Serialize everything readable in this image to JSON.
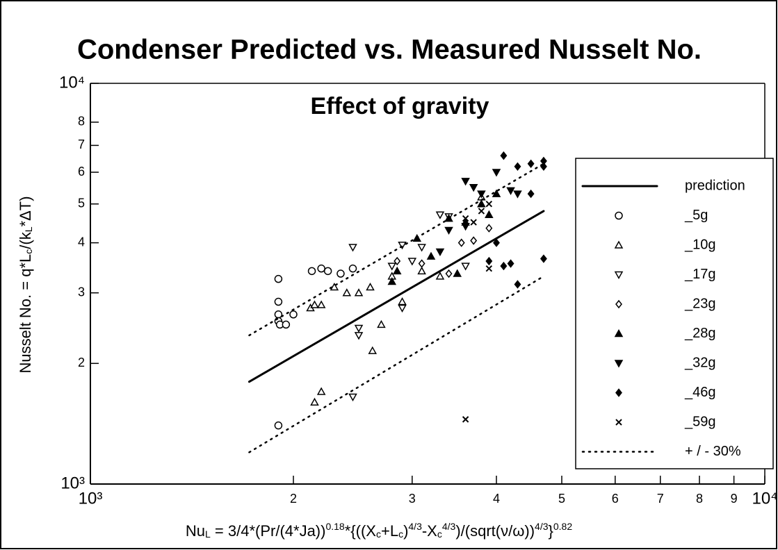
{
  "chart_data": {
    "type": "scatter",
    "title": "Condenser Predicted vs. Measured Nusselt No.",
    "subtitle": "Effect of gravity",
    "ylabel_parts": [
      {
        "text": "Nusselt No. = q*L"
      },
      {
        "text": "c",
        "pos": "sub"
      },
      {
        "text": "/(k"
      },
      {
        "text": "L",
        "pos": "sub"
      },
      {
        "text": "*ΔT)"
      }
    ],
    "xlabel_parts": [
      {
        "text": "Nu"
      },
      {
        "text": "L",
        "pos": "sub"
      },
      {
        "text": " = 3/4*(Pr/(4*Ja))"
      },
      {
        "text": "0.18",
        "pos": "sup"
      },
      {
        "text": "*{((X"
      },
      {
        "text": "c",
        "pos": "sub"
      },
      {
        "text": "+L"
      },
      {
        "text": "c",
        "pos": "sub"
      },
      {
        "text": ")"
      },
      {
        "text": "4/3",
        "pos": "sup"
      },
      {
        "text": "-X"
      },
      {
        "text": "c",
        "pos": "sub"
      },
      {
        "text": "4/3",
        "pos": "sup"
      },
      {
        "text": ")/(sqrt(ν/ω))"
      },
      {
        "text": "4/3",
        "pos": "sup"
      },
      {
        "text": "}"
      },
      {
        "text": "0.82",
        "pos": "sup"
      }
    ],
    "log_x": true,
    "log_y": true,
    "xlim": [
      1000,
      10000
    ],
    "ylim": [
      1000,
      10000
    ],
    "xticks": [
      {
        "value": 1000,
        "label": "10³"
      },
      {
        "value": 2000,
        "label": "2"
      },
      {
        "value": 3000,
        "label": "3"
      },
      {
        "value": 4000,
        "label": "4"
      },
      {
        "value": 5000,
        "label": "5"
      },
      {
        "value": 6000,
        "label": "6"
      },
      {
        "value": 7000,
        "label": "7"
      },
      {
        "value": 8000,
        "label": "8"
      },
      {
        "value": 9000,
        "label": "9"
      },
      {
        "value": 10000,
        "label": "10⁴"
      }
    ],
    "yticks": [
      {
        "value": 1000,
        "label": "10³"
      },
      {
        "value": 2000,
        "label": "2"
      },
      {
        "value": 3000,
        "label": "3"
      },
      {
        "value": 4000,
        "label": "4"
      },
      {
        "value": 5000,
        "label": "5"
      },
      {
        "value": 6000,
        "label": "6"
      },
      {
        "value": 7000,
        "label": "7"
      },
      {
        "value": 8000,
        "label": "8"
      },
      {
        "value": 10000,
        "label": "10⁴"
      }
    ],
    "series": [
      {
        "name": "prediction",
        "style": "solid",
        "color": "#000000",
        "x": [
          1720,
          4700
        ],
        "values": [
          1800,
          4800
        ]
      },
      {
        "name": "_5g",
        "marker": "circle",
        "color": "#000000",
        "x": [
          1900,
          1900,
          1900,
          1900,
          1910,
          1950,
          2000,
          2130,
          2200,
          2250,
          2350,
          2450,
          1900
        ],
        "values": [
          3250,
          2850,
          2650,
          2550,
          2500,
          2500,
          2650,
          3400,
          3450,
          3400,
          3350,
          3450,
          1400
        ]
      },
      {
        "name": "_10g",
        "marker": "tri-up",
        "color": "#000000",
        "x": [
          2120,
          2150,
          2200,
          2300,
          2400,
          2500,
          2600,
          2700,
          2620,
          2200,
          2150,
          2800,
          2900,
          3100,
          3300,
          3800
        ],
        "values": [
          2750,
          2800,
          2800,
          3100,
          3000,
          3000,
          3100,
          2500,
          2150,
          1700,
          1600,
          3300,
          2850,
          3400,
          3300,
          5200
        ]
      },
      {
        "name": "_17g",
        "marker": "tri-down",
        "color": "#000000",
        "x": [
          2450,
          2500,
          2450,
          2500,
          2800,
          2900,
          3000,
          3100,
          3300,
          3400,
          2900,
          3600
        ],
        "values": [
          3900,
          2350,
          1650,
          2450,
          3500,
          3950,
          3600,
          3900,
          4700,
          4650,
          2750,
          3500
        ]
      },
      {
        "name": "_23g",
        "marker": "diamond",
        "color": "#000000",
        "x": [
          2850,
          3100,
          3400,
          3550,
          3700,
          3900
        ],
        "values": [
          3600,
          3550,
          3350,
          4000,
          4050,
          4350
        ]
      },
      {
        "name": "_28g",
        "marker": "tri-up-filled",
        "color": "#000000",
        "x": [
          2800,
          2850,
          3050,
          3400,
          3500,
          3800,
          3900,
          4000,
          3200,
          3600
        ],
        "values": [
          3200,
          3400,
          4100,
          4600,
          3350,
          5000,
          4700,
          5300,
          3700,
          4500
        ]
      },
      {
        "name": "_32g",
        "marker": "tri-down-filled",
        "color": "#000000",
        "x": [
          3600,
          3700,
          3800,
          4000,
          4200,
          4300,
          3400,
          3300,
          3600
        ],
        "values": [
          5700,
          5500,
          5300,
          6000,
          5400,
          5300,
          4300,
          3800,
          4400
        ]
      },
      {
        "name": "_46g",
        "marker": "diamond-filled",
        "color": "#000000",
        "x": [
          4100,
          4300,
          4500,
          4700,
          4700,
          4500,
          4000,
          4100,
          4200,
          4300,
          4700,
          3900
        ],
        "values": [
          6600,
          6200,
          6300,
          6400,
          6200,
          5300,
          4000,
          3500,
          3550,
          3150,
          3650,
          3600
        ]
      },
      {
        "name": "_59g",
        "marker": "cross",
        "color": "#000000",
        "x": [
          3600,
          3900,
          3800,
          3700,
          3600,
          3900
        ],
        "values": [
          1450,
          3450,
          4800,
          4500,
          4600,
          5000
        ]
      },
      {
        "name": "+ / - 30%",
        "style": "dotted",
        "color": "#000000",
        "x": [
          1720,
          4700,
          null,
          1720,
          4700
        ],
        "values": [
          2350,
          6300,
          null,
          1200,
          3300
        ]
      }
    ]
  }
}
